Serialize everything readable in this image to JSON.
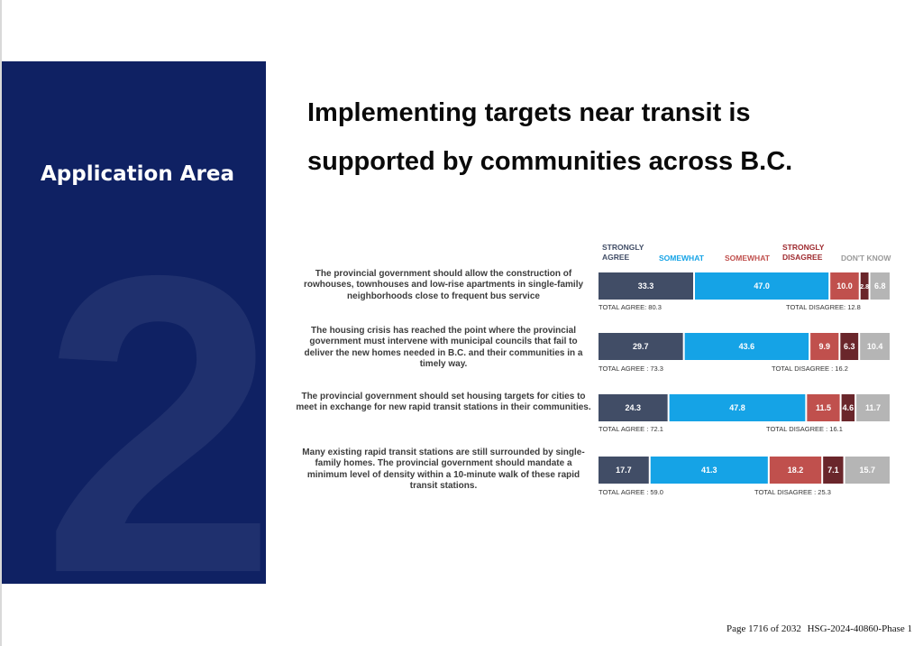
{
  "sidebar": {
    "title": "Application Area",
    "number": "2"
  },
  "headline": {
    "line1": "Implementing targets near transit is",
    "line2": "supported by communities across B.C."
  },
  "colors": {
    "strongly_agree": "#414d66",
    "somewhat_agree": "#15a3e6",
    "somewhat_disagree": "#c0504d",
    "strongly_disagree": "#6a262b",
    "dont_know": "#b5b5b5",
    "panel": "#0f2163"
  },
  "chart_data": {
    "type": "bar",
    "orientation": "horizontal-stacked-100",
    "legend": [
      {
        "key": "strongly_agree",
        "label": "STRONGLY AGREE"
      },
      {
        "key": "somewhat_agree",
        "label": "SOMEWHAT"
      },
      {
        "key": "somewhat_disagree",
        "label": "SOMEWHAT"
      },
      {
        "key": "strongly_disagree",
        "label": "STRONGLY DISAGREE"
      },
      {
        "key": "dont_know",
        "label": "DON'T KNOW"
      }
    ],
    "series": [
      "strongly_agree",
      "somewhat_agree",
      "somewhat_disagree",
      "strongly_disagree",
      "dont_know"
    ],
    "rows": [
      {
        "statement": "The provincial government should allow the construction of rowhouses, townhouses and low-rise apartments in single-family neighborhoods close to frequent bus service",
        "values": [
          33.3,
          47.0,
          10.0,
          2.8,
          6.8
        ],
        "labels": [
          "33.3",
          "47.0",
          "10.0",
          "2.8",
          "6.8"
        ],
        "total_agree": "TOTAL AGREE: 80.3",
        "total_disagree": "TOTAL DISAGREE: 12.8"
      },
      {
        "statement": "The housing crisis has reached the point where the provincial government must intervene with municipal councils that fail to deliver the new homes needed in B.C. and their communities in a timely way.",
        "values": [
          29.7,
          43.6,
          9.9,
          6.3,
          10.4
        ],
        "labels": [
          "29.7",
          "43.6",
          "9.9",
          "6.3",
          "10.4"
        ],
        "total_agree": "TOTAL AGREE : 73.3",
        "total_disagree": "TOTAL DISAGREE : 16.2"
      },
      {
        "statement": "The provincial government should set housing targets for cities to meet in exchange for new rapid transit stations in their communities.",
        "values": [
          24.3,
          47.8,
          11.5,
          4.6,
          11.7
        ],
        "labels": [
          "24.3",
          "47.8",
          "11.5",
          "4.6",
          "11.7"
        ],
        "total_agree": "TOTAL AGREE : 72.1",
        "total_disagree": "TOTAL DISAGREE : 16.1"
      },
      {
        "statement": "Many existing rapid transit stations are still surrounded by single-family homes. The provincial government should mandate a minimum level of density within a 10-minute walk of these rapid transit stations.",
        "values": [
          17.7,
          41.3,
          18.2,
          7.1,
          15.7
        ],
        "labels": [
          "17.7",
          "41.3",
          "18.2",
          "7.1",
          "15.7"
        ],
        "total_agree": "TOTAL AGREE : 59.0",
        "total_disagree": "TOTAL DISAGREE : 25.3"
      }
    ]
  },
  "footer": {
    "page": "Page  1716 of 2032",
    "doc_id": "HSG-2024-40860-Phase 1"
  }
}
